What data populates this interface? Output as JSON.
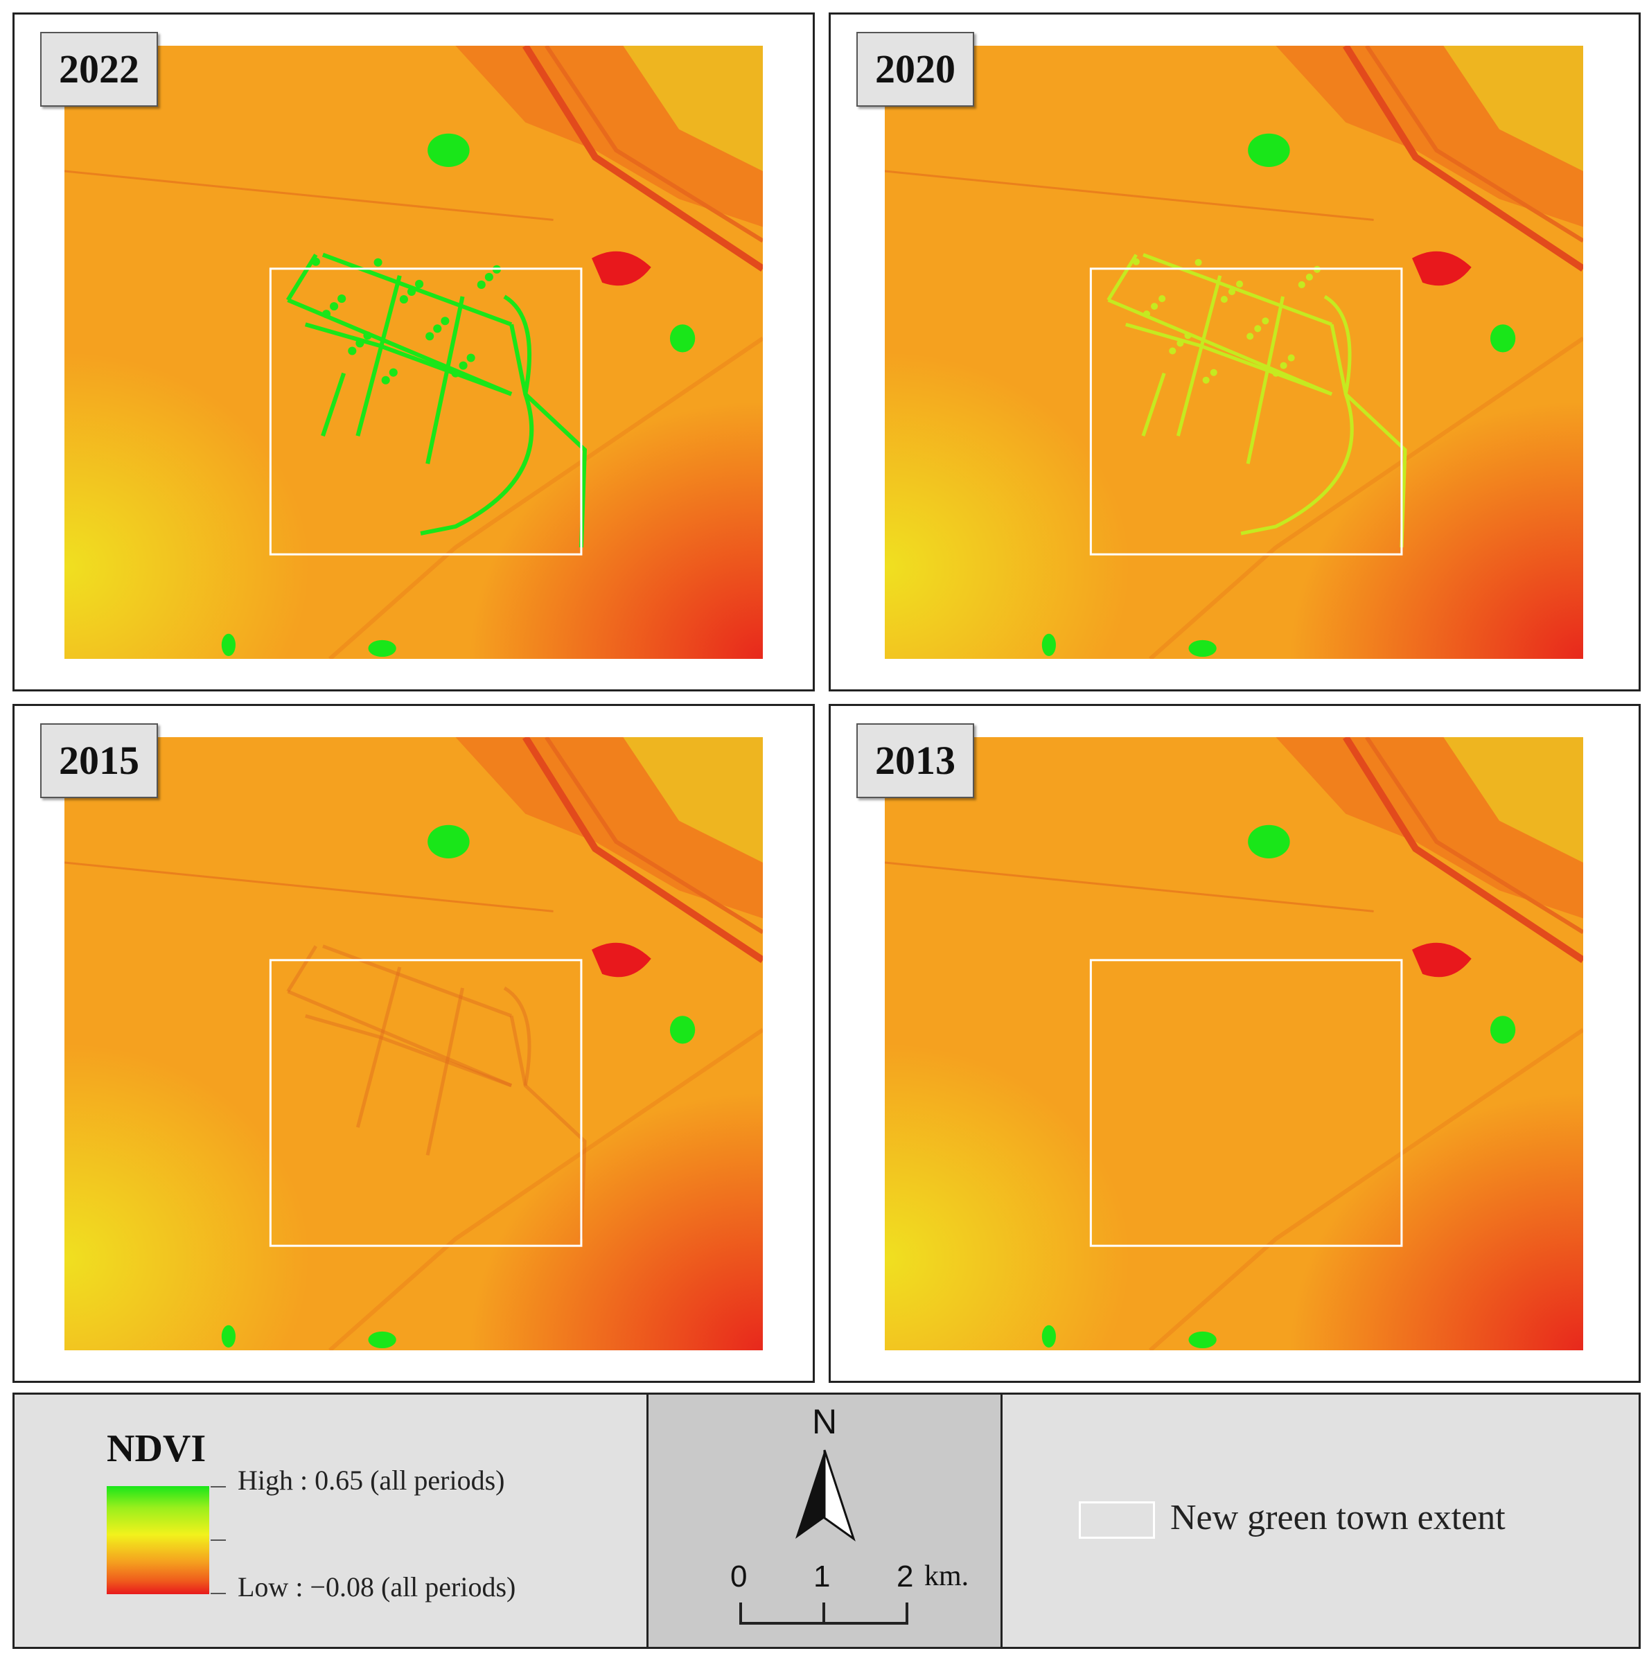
{
  "panels": [
    {
      "year": "2022",
      "green_stage": 3
    },
    {
      "year": "2020",
      "green_stage": 2
    },
    {
      "year": "2015",
      "green_stage": 1
    },
    {
      "year": "2013",
      "green_stage": 0
    }
  ],
  "legend": {
    "title": "NDVI",
    "high_label": "High : 0.65 (all periods)",
    "low_label": "Low : −0.08 (all periods)",
    "colors": [
      "#19e619",
      "#f2f21c",
      "#f5a11f",
      "#e8181c"
    ]
  },
  "north": {
    "letter": "N"
  },
  "scalebar": {
    "labels": [
      "0",
      "1",
      "2"
    ],
    "unit": "km."
  },
  "extent_legend": {
    "label": "New green town extent"
  }
}
